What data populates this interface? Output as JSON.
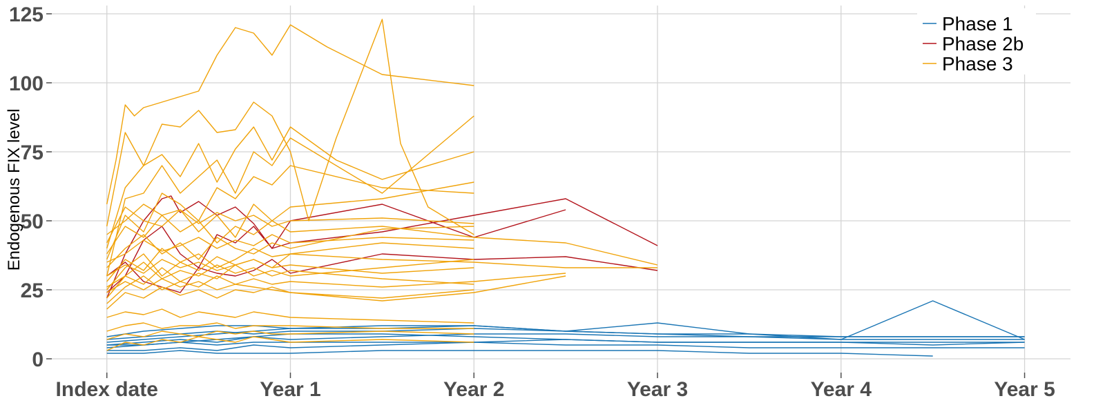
{
  "chart_data": {
    "type": "line",
    "title": "",
    "ylabel": "Endogenous FIX level",
    "xlabel": "",
    "ylim": [
      -5,
      128
    ],
    "yticks": [
      0,
      25,
      50,
      75,
      100,
      125
    ],
    "xlim": [
      -0.3,
      5.25
    ],
    "xticks": [
      {
        "value": 0,
        "label": "Index date"
      },
      {
        "value": 1,
        "label": "Year 1"
      },
      {
        "value": 2,
        "label": "Year 2"
      },
      {
        "value": 3,
        "label": "Year 3"
      },
      {
        "value": 4,
        "label": "Year 4"
      },
      {
        "value": 5,
        "label": "Year 5"
      }
    ],
    "grid": true,
    "legend_position": "top-right",
    "colors": {
      "Phase 1": "#1a75b4",
      "Phase 2b": "#b3141c",
      "Phase 3": "#f0a30a"
    },
    "groups": [
      "Phase 1",
      "Phase 2b",
      "Phase 3"
    ],
    "series": [
      {
        "group": "Phase 3",
        "x": [
          0,
          0.05,
          0.1,
          0.15,
          0.2,
          0.3,
          0.4,
          0.5,
          0.6,
          0.7,
          0.8,
          0.9,
          1,
          1.2,
          1.5,
          2
        ],
        "y": [
          56,
          72,
          92,
          88,
          91,
          93,
          95,
          97,
          110,
          120,
          118,
          110,
          121,
          113,
          103,
          99
        ]
      },
      {
        "group": "Phase 3",
        "x": [
          0,
          0.1,
          0.2,
          0.3,
          0.4,
          0.5,
          0.6,
          0.7,
          0.8,
          0.9,
          1,
          1.1,
          1.25,
          1.5,
          1.6,
          1.75,
          2
        ],
        "y": [
          48,
          82,
          70,
          85,
          84,
          90,
          82,
          83,
          93,
          88,
          75,
          50,
          80,
          123,
          78,
          55,
          45
        ]
      },
      {
        "group": "Phase 3",
        "x": [
          0,
          0.1,
          0.2,
          0.3,
          0.4,
          0.5,
          0.6,
          0.7,
          0.8,
          0.9,
          1,
          1.25,
          1.5,
          2
        ],
        "y": [
          40,
          62,
          70,
          74,
          66,
          78,
          64,
          76,
          84,
          72,
          84,
          72,
          65,
          75
        ]
      },
      {
        "group": "Phase 3",
        "x": [
          0,
          0.1,
          0.2,
          0.3,
          0.4,
          0.5,
          0.6,
          0.7,
          0.8,
          0.9,
          1,
          1.5,
          2
        ],
        "y": [
          30,
          58,
          60,
          70,
          60,
          66,
          72,
          60,
          75,
          70,
          80,
          60,
          88
        ]
      },
      {
        "group": "Phase 3",
        "x": [
          0,
          0.1,
          0.2,
          0.3,
          0.4,
          0.5,
          0.6,
          0.7,
          0.8,
          0.9,
          1,
          1.5,
          2
        ],
        "y": [
          36,
          52,
          46,
          60,
          56,
          50,
          62,
          58,
          66,
          63,
          70,
          62,
          60
        ]
      },
      {
        "group": "Phase 3",
        "x": [
          0,
          0.1,
          0.2,
          0.3,
          0.4,
          0.5,
          0.6,
          0.7,
          0.8,
          0.9,
          1,
          1.5,
          2
        ],
        "y": [
          42,
          55,
          50,
          48,
          54,
          46,
          52,
          44,
          56,
          50,
          55,
          58,
          64
        ]
      },
      {
        "group": "Phase 3",
        "x": [
          0,
          0.1,
          0.2,
          0.3,
          0.4,
          0.5,
          0.6,
          0.7,
          0.8,
          0.9,
          1,
          1.5,
          2,
          2.5,
          3
        ],
        "y": [
          38,
          48,
          44,
          52,
          46,
          50,
          42,
          48,
          45,
          50,
          46,
          48,
          44,
          42,
          34
        ]
      },
      {
        "group": "Phase 3",
        "x": [
          0,
          0.1,
          0.2,
          0.3,
          0.4,
          0.5,
          0.6,
          0.7,
          0.8,
          0.9,
          1,
          1.5,
          2
        ],
        "y": [
          33,
          40,
          45,
          38,
          42,
          36,
          44,
          40,
          38,
          42,
          40,
          47,
          48
        ]
      },
      {
        "group": "Phase 3",
        "x": [
          0,
          0.1,
          0.2,
          0.3,
          0.4,
          0.5,
          0.6,
          0.7,
          0.8,
          0.9,
          1,
          1.5,
          2
        ],
        "y": [
          28,
          36,
          32,
          40,
          35,
          38,
          33,
          36,
          40,
          37,
          38,
          42,
          40
        ]
      },
      {
        "group": "Phase 3",
        "x": [
          0,
          0.1,
          0.2,
          0.3,
          0.4,
          0.5,
          0.6,
          0.7,
          0.8,
          0.9,
          1,
          1.5,
          2,
          2.5,
          3
        ],
        "y": [
          25,
          33,
          38,
          30,
          35,
          32,
          37,
          34,
          36,
          33,
          38,
          36,
          35,
          33,
          33
        ]
      },
      {
        "group": "Phase 3",
        "x": [
          0,
          0.1,
          0.2,
          0.3,
          0.4,
          0.5,
          0.6,
          0.7,
          0.8,
          0.9,
          1,
          1.5,
          2
        ],
        "y": [
          22,
          30,
          27,
          33,
          28,
          31,
          29,
          34,
          30,
          32,
          30,
          33,
          36
        ]
      },
      {
        "group": "Phase 3",
        "x": [
          0,
          0.1,
          0.2,
          0.3,
          0.4,
          0.5,
          0.6,
          0.7,
          0.8,
          0.9,
          1,
          1.5,
          2,
          2.5
        ],
        "y": [
          20,
          26,
          30,
          25,
          28,
          26,
          30,
          27,
          29,
          27,
          28,
          26,
          28,
          31
        ]
      },
      {
        "group": "Phase 3",
        "x": [
          0,
          0.1,
          0.2,
          0.3,
          0.4,
          0.5,
          0.6,
          0.7,
          0.8,
          0.9,
          1,
          1.5,
          2
        ],
        "y": [
          18,
          24,
          22,
          26,
          23,
          25,
          22,
          25,
          24,
          26,
          24,
          22,
          25
        ]
      },
      {
        "group": "Phase 3",
        "x": [
          0,
          0.1,
          0.2,
          0.3,
          0.4,
          0.5,
          0.6,
          0.7,
          0.8,
          0.9,
          1,
          1.5,
          2,
          2.5
        ],
        "y": [
          24,
          28,
          25,
          29,
          26,
          28,
          25,
          27,
          26,
          25,
          24,
          21,
          24,
          30
        ]
      },
      {
        "group": "Phase 3",
        "x": [
          0,
          0.1,
          0.2,
          0.3,
          0.4,
          0.5,
          0.6,
          0.7,
          0.8,
          0.9,
          1,
          1.5,
          2
        ],
        "y": [
          30,
          34,
          31,
          36,
          33,
          35,
          32,
          34,
          36,
          33,
          34,
          31,
          33
        ]
      },
      {
        "group": "Phase 3",
        "x": [
          0,
          0.1,
          0.2,
          0.3,
          0.4,
          0.5,
          0.6,
          0.7,
          0.8,
          0.9,
          1,
          1.5,
          2
        ],
        "y": [
          35,
          38,
          43,
          39,
          41,
          44,
          40,
          43,
          41,
          45,
          42,
          44,
          43
        ]
      },
      {
        "group": "Phase 3",
        "x": [
          0,
          0.1,
          0.2,
          0.3,
          0.4,
          0.5,
          0.6,
          0.7,
          0.8,
          0.9,
          1,
          1.5,
          2
        ],
        "y": [
          26,
          30,
          35,
          29,
          32,
          30,
          34,
          31,
          33,
          30,
          32,
          29,
          27
        ]
      },
      {
        "group": "Phase 3",
        "x": [
          0,
          0.1,
          0.2,
          0.3,
          0.4,
          0.5,
          0.6,
          0.7,
          0.8,
          0.9,
          1,
          1.5,
          2
        ],
        "y": [
          45,
          50,
          56,
          52,
          54,
          49,
          53,
          50,
          52,
          48,
          50,
          51,
          49
        ]
      },
      {
        "group": "Phase 3",
        "x": [
          0,
          0.1,
          0.2,
          0.3,
          0.4,
          0.5,
          0.6,
          0.7,
          0.8,
          0.9,
          1,
          1.5,
          2
        ],
        "y": [
          15,
          17,
          16,
          18,
          15,
          17,
          16,
          15,
          17,
          16,
          15,
          14,
          13
        ]
      },
      {
        "group": "Phase 3",
        "x": [
          0,
          0.1,
          0.2,
          0.3,
          0.4,
          0.5,
          0.6,
          0.7,
          0.8,
          0.9,
          1,
          1.5,
          2
        ],
        "y": [
          10,
          12,
          13,
          11,
          12,
          12,
          13,
          11,
          12,
          12,
          12,
          11,
          11
        ]
      },
      {
        "group": "Phase 3",
        "x": [
          0,
          0.1,
          0.2,
          0.3,
          0.4,
          0.5,
          0.6,
          0.7,
          0.8,
          0.9,
          1,
          1.5,
          2
        ],
        "y": [
          7,
          9,
          8,
          10,
          9,
          8,
          10,
          9,
          10,
          9,
          9,
          10,
          9
        ]
      },
      {
        "group": "Phase 3",
        "x": [
          0,
          0.1,
          0.2,
          0.3,
          0.4,
          0.5,
          0.6,
          0.7,
          0.8,
          0.9,
          1,
          1.5,
          2
        ],
        "y": [
          3,
          6,
          5,
          7,
          6,
          8,
          7,
          6,
          8,
          7,
          6,
          7,
          6
        ]
      },
      {
        "group": "Phase 2b",
        "x": [
          0,
          0.1,
          0.2,
          0.3,
          0.35,
          0.4,
          0.5,
          0.6,
          0.7,
          0.8,
          0.9,
          1,
          1.5,
          2,
          2.5
        ],
        "y": [
          22,
          38,
          50,
          58,
          59,
          53,
          57,
          52,
          55,
          49,
          40,
          50,
          56,
          44,
          54
        ]
      },
      {
        "group": "Phase 2b",
        "x": [
          0,
          0.1,
          0.2,
          0.3,
          0.4,
          0.5,
          0.6,
          0.7,
          0.8,
          0.9,
          1,
          1.5,
          2,
          2.5,
          3
        ],
        "y": [
          24,
          30,
          43,
          48,
          38,
          33,
          45,
          42,
          48,
          40,
          42,
          46,
          52,
          58,
          41
        ]
      },
      {
        "group": "Phase 2b",
        "x": [
          0,
          0.1,
          0.2,
          0.3,
          0.4,
          0.5,
          0.6,
          0.7,
          0.8,
          0.9,
          1,
          1.5,
          2,
          2.5,
          3
        ],
        "y": [
          30,
          35,
          28,
          26,
          24,
          33,
          31,
          30,
          32,
          36,
          31,
          38,
          36,
          37,
          32
        ]
      },
      {
        "group": "Phase 1",
        "x": [
          0,
          0.2,
          0.4,
          0.6,
          0.8,
          1,
          1.5,
          2,
          2.5,
          3,
          3.5,
          4,
          4.5,
          5
        ],
        "y": [
          4,
          5,
          6,
          7,
          8,
          9,
          9,
          8,
          7,
          6,
          6,
          6,
          5,
          6
        ]
      },
      {
        "group": "Phase 1",
        "x": [
          0,
          0.2,
          0.4,
          0.6,
          0.8,
          1,
          1.5,
          2,
          2.5,
          3,
          3.5,
          4,
          4.5,
          5
        ],
        "y": [
          6,
          7,
          8,
          9,
          10,
          11,
          12,
          12,
          10,
          9,
          8,
          7,
          7,
          7
        ]
      },
      {
        "group": "Phase 1",
        "x": [
          0,
          0.2,
          0.4,
          0.6,
          0.8,
          1,
          1.5,
          2,
          2.5,
          3,
          3.5,
          4,
          4.5,
          5
        ],
        "y": [
          3,
          3,
          4,
          3,
          5,
          4,
          5,
          6,
          5,
          5,
          4,
          4,
          4,
          4
        ]
      },
      {
        "group": "Phase 1",
        "x": [
          0,
          0.2,
          0.4,
          0.6,
          0.8,
          1,
          1.5,
          2,
          2.5,
          3,
          3.5,
          4,
          4.5,
          5
        ],
        "y": [
          5,
          6,
          7,
          6,
          8,
          7,
          8,
          9,
          9,
          8,
          8,
          8,
          8,
          8
        ]
      },
      {
        "group": "Phase 1",
        "x": [
          0,
          0.2,
          0.4,
          0.6,
          0.8,
          1,
          1.5,
          2,
          2.5,
          3,
          3.5,
          4,
          4.5,
          5
        ],
        "y": [
          7,
          8,
          9,
          10,
          9,
          10,
          10,
          11,
          10,
          9,
          9,
          8,
          8,
          8
        ]
      },
      {
        "group": "Phase 1",
        "x": [
          0,
          0.2,
          0.4,
          0.6,
          0.8,
          1,
          1.5,
          2,
          2.5,
          3,
          3.5,
          4,
          4.5,
          5
        ],
        "y": [
          8,
          10,
          11,
          12,
          12,
          11,
          11,
          12,
          10,
          13,
          9,
          7,
          21,
          7
        ]
      },
      {
        "group": "Phase 1",
        "x": [
          0,
          0.2,
          0.4,
          0.6,
          0.8,
          1,
          1.5,
          2,
          2.5,
          3,
          3.5,
          4,
          4.5
        ],
        "y": [
          2,
          2,
          3,
          2,
          2,
          2,
          3,
          3,
          3,
          3,
          2,
          2,
          1
        ]
      },
      {
        "group": "Phase 1",
        "x": [
          0,
          0.2,
          0.4,
          0.6,
          0.8,
          1,
          1.5,
          2,
          2.5,
          3,
          3.5,
          4,
          4.5,
          5
        ],
        "y": [
          5,
          5,
          6,
          5,
          6,
          6,
          6,
          6,
          7,
          6,
          6,
          6,
          6,
          6
        ]
      }
    ]
  }
}
